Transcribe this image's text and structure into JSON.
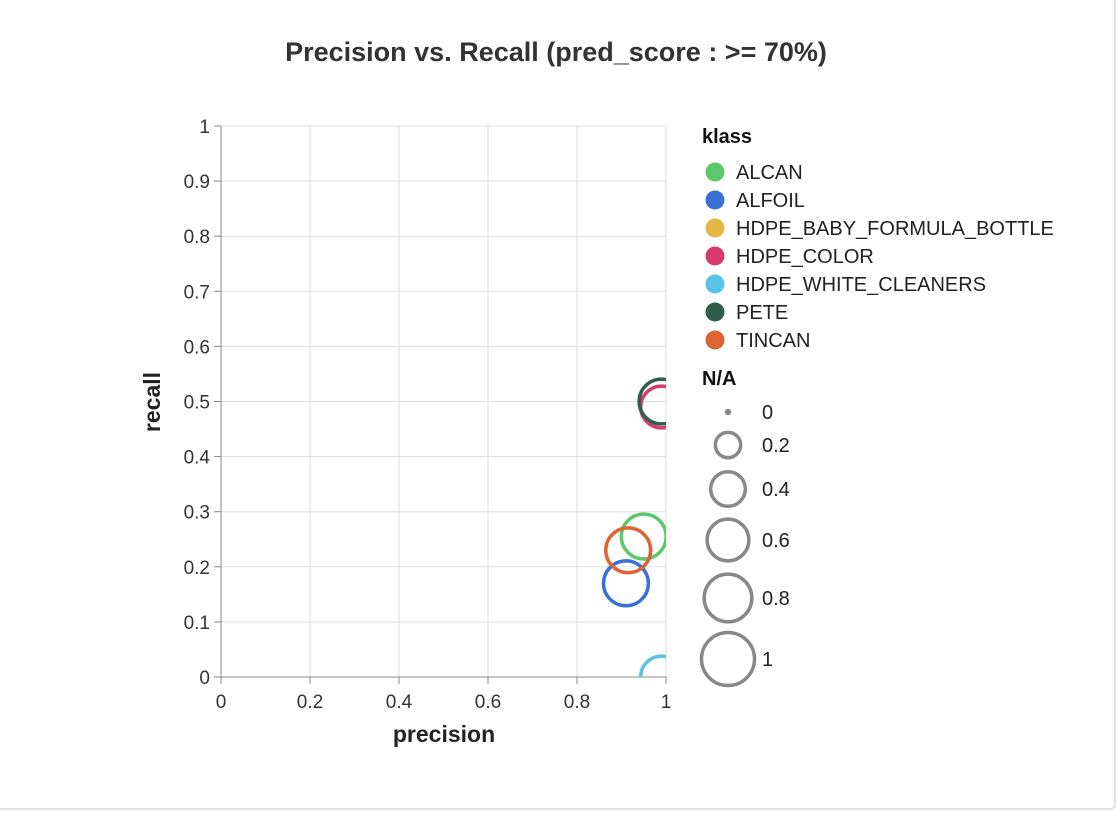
{
  "chart_data": {
    "type": "scatter",
    "title": "Precision vs. Recall (pred_score : >= 70%)",
    "xlabel": "precision",
    "ylabel": "recall",
    "xlim": [
      0,
      1
    ],
    "ylim": [
      0,
      1
    ],
    "grid": true,
    "x_ticks": [
      "0",
      "0.2",
      "0.4",
      "0.6",
      "0.8",
      "1"
    ],
    "y_ticks": [
      "0",
      "0.1",
      "0.2",
      "0.3",
      "0.4",
      "0.5",
      "0.6",
      "0.7",
      "0.8",
      "0.9",
      "1"
    ],
    "color_legend": {
      "title": "klass",
      "placement": "right",
      "entries": [
        {
          "name": "ALCAN",
          "color": "#5cc86b"
        },
        {
          "name": "ALFOIL",
          "color": "#3a6fd8"
        },
        {
          "name": "HDPE_BABY_FORMULA_BOTTLE",
          "color": "#e3b744"
        },
        {
          "name": "HDPE_COLOR",
          "color": "#d63b6f"
        },
        {
          "name": "HDPE_WHITE_CLEANERS",
          "color": "#5bc3e5"
        },
        {
          "name": "PETE",
          "color": "#2f5e4c"
        },
        {
          "name": "TINCAN",
          "color": "#dd6535"
        }
      ]
    },
    "size_legend": {
      "title": "N/A",
      "placement": "right",
      "entries": [
        {
          "label": "0",
          "value": 0
        },
        {
          "label": "0.2",
          "value": 0.2
        },
        {
          "label": "0.4",
          "value": 0.4
        },
        {
          "label": "0.6",
          "value": 0.6
        },
        {
          "label": "0.8",
          "value": 0.8
        },
        {
          "label": "1",
          "value": 1
        }
      ]
    },
    "points": [
      {
        "klass": "ALCAN",
        "x": 0.95,
        "y": 0.255,
        "size": 0.7
      },
      {
        "klass": "ALFOIL",
        "x": 0.91,
        "y": 0.17,
        "size": 0.7
      },
      {
        "klass": "HDPE_COLOR",
        "x": 0.99,
        "y": 0.49,
        "size": 0.6
      },
      {
        "klass": "HDPE_WHITE_CLEANERS",
        "x": 0.99,
        "y": 0.0,
        "size": 0.6
      },
      {
        "klass": "PETE",
        "x": 0.99,
        "y": 0.5,
        "size": 0.7
      },
      {
        "klass": "TINCAN",
        "x": 0.915,
        "y": 0.23,
        "size": 0.7
      }
    ]
  }
}
